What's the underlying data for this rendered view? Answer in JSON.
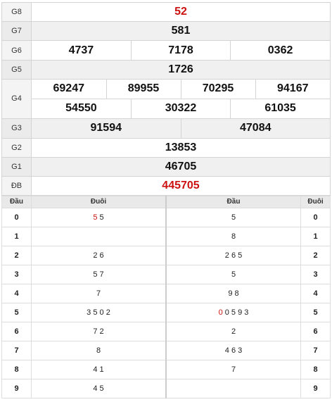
{
  "prizes": {
    "g8": {
      "label": "G8",
      "value": "52"
    },
    "g7": {
      "label": "G7",
      "value": "581"
    },
    "g6": {
      "label": "G6",
      "values": [
        "4737",
        "7178",
        "0362"
      ]
    },
    "g5": {
      "label": "G5",
      "value": "1726"
    },
    "g4": {
      "label": "G4",
      "row1": [
        "69247",
        "89955",
        "70295",
        "94167"
      ],
      "row2": [
        "54550",
        "30322",
        "61035"
      ]
    },
    "g3": {
      "label": "G3",
      "values": [
        "91594",
        "47084"
      ]
    },
    "g2": {
      "label": "G2",
      "value": "13853"
    },
    "g1": {
      "label": "G1",
      "value": "46705"
    },
    "db": {
      "label": "ĐB",
      "value": "445705"
    }
  },
  "lotto_table": {
    "headers": {
      "dau": "Đầu",
      "duoi": "Đuôi",
      "dau2": "Đầu",
      "duoi2": "Đuôi"
    },
    "rows": [
      {
        "dau": "0",
        "duoi_hl": "5",
        "duoi": " 5",
        "dau2_hl": "",
        "dau2": "5",
        "duoi2": "0"
      },
      {
        "dau": "1",
        "duoi_hl": "",
        "duoi": "",
        "dau2_hl": "",
        "dau2": "8",
        "duoi2": "1"
      },
      {
        "dau": "2",
        "duoi_hl": "",
        "duoi": "2 6",
        "dau2_hl": "",
        "dau2": "2 6 5",
        "duoi2": "2"
      },
      {
        "dau": "3",
        "duoi_hl": "",
        "duoi": "5 7",
        "dau2_hl": "",
        "dau2": "5",
        "duoi2": "3"
      },
      {
        "dau": "4",
        "duoi_hl": "",
        "duoi": "7",
        "dau2_hl": "",
        "dau2": "9 8",
        "duoi2": "4"
      },
      {
        "dau": "5",
        "duoi_hl": "",
        "duoi": "3 5 0 2",
        "dau2_hl": "0",
        "dau2": " 0 5 9 3",
        "duoi2": "5"
      },
      {
        "dau": "6",
        "duoi_hl": "",
        "duoi": "7 2",
        "dau2_hl": "",
        "dau2": "2",
        "duoi2": "6"
      },
      {
        "dau": "7",
        "duoi_hl": "",
        "duoi": "8",
        "dau2_hl": "",
        "dau2": "4 6 3",
        "duoi2": "7"
      },
      {
        "dau": "8",
        "duoi_hl": "",
        "duoi": "4 1",
        "dau2_hl": "",
        "dau2": "7",
        "duoi2": "8"
      },
      {
        "dau": "9",
        "duoi_hl": "",
        "duoi": "4 5",
        "dau2_hl": "",
        "dau2": "",
        "duoi2": "9"
      }
    ]
  },
  "colors": {
    "special": "#cc1111",
    "shade": "#f0f0f0",
    "border": "#d4d4d4"
  }
}
